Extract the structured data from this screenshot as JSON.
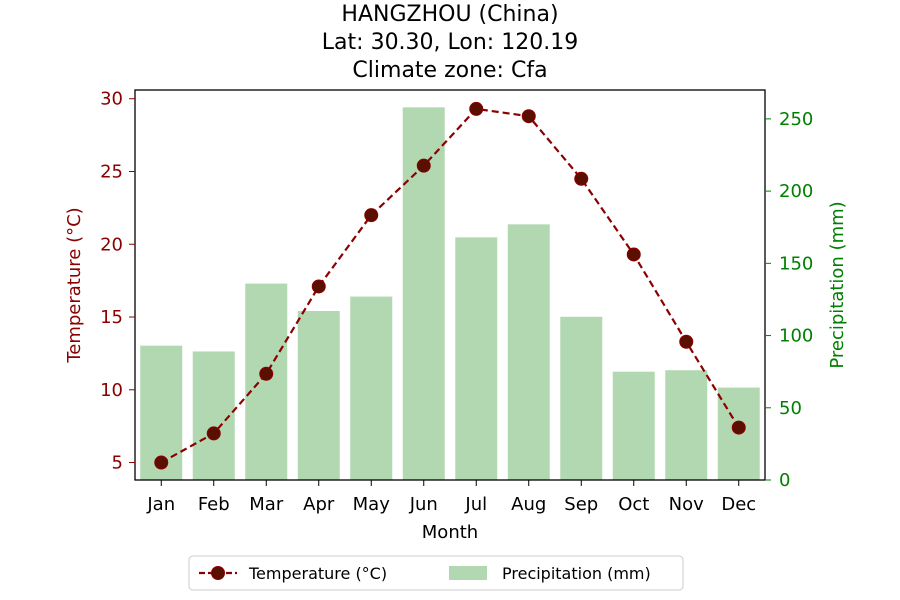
{
  "title": {
    "line1": "HANGZHOU (China)",
    "line2": "Lat: 30.30, Lon: 120.19",
    "line3": "Climate zone: Cfa"
  },
  "colors": {
    "temperature": "#8b0000",
    "marker_face": "#5a0f00",
    "precipitation_bar": "#b2d8b2",
    "precip_axis": "#008000"
  },
  "chart_data": {
    "type": "bar",
    "categories": [
      "Jan",
      "Feb",
      "Mar",
      "Apr",
      "May",
      "Jun",
      "Jul",
      "Aug",
      "Sep",
      "Oct",
      "Nov",
      "Dec"
    ],
    "xlabel": "Month",
    "series": [
      {
        "name": "Temperature (°C)",
        "type": "line",
        "axis": "left",
        "values": [
          5.0,
          7.0,
          11.1,
          17.1,
          22.0,
          25.4,
          29.3,
          28.8,
          24.5,
          19.3,
          13.3,
          7.4
        ]
      },
      {
        "name": "Precipitation (mm)",
        "type": "bar",
        "axis": "right",
        "values": [
          93,
          89,
          136,
          117,
          127,
          258,
          168,
          177,
          113,
          75,
          76,
          64
        ]
      }
    ],
    "y_left": {
      "label": "Temperature (°C)",
      "lim": [
        3.8,
        30.6
      ],
      "ticks": [
        5,
        10,
        15,
        20,
        25,
        30
      ]
    },
    "y_right": {
      "label": "Precipitation (mm)",
      "lim": [
        0,
        270
      ],
      "ticks": [
        0,
        50,
        100,
        150,
        200,
        250
      ]
    },
    "grid": false,
    "legend_position": "bottom-center"
  }
}
